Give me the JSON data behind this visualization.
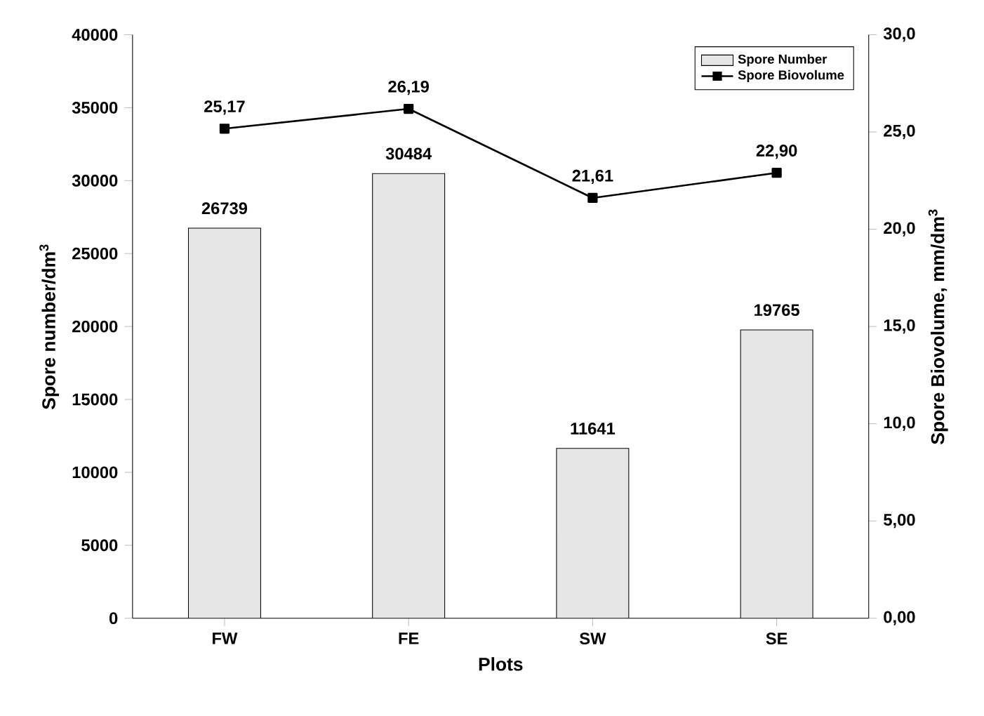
{
  "chart_data": {
    "type": "bar",
    "xlabel": "Plots",
    "ylabel": "Spore number/dm$^{3}$",
    "y2label": "Spore Biovolume, mm/dm$^{3}$",
    "categories": [
      "FW",
      "FE",
      "SW",
      "SE"
    ],
    "series": [
      {
        "name": "Spore Number",
        "color": "#e6e6e6",
        "values": [
          26739,
          30484,
          11641,
          19765
        ]
      },
      {
        "name": "Spore Biovolume",
        "type": "line",
        "axis": "y2",
        "color": "#000000",
        "marker": "square",
        "values": [
          25.17,
          26.19,
          21.61,
          22.9
        ],
        "value_labels": [
          "25,17",
          "26,19",
          "21,61",
          "22,90"
        ]
      }
    ],
    "ylim": [
      0,
      40000
    ],
    "yticks": [
      0,
      5000,
      10000,
      15000,
      20000,
      25000,
      30000,
      35000,
      40000
    ],
    "y2lim": [
      0,
      30
    ],
    "y2ticks": [
      {
        "value": 0,
        "label": "0,00"
      },
      {
        "value": 5,
        "label": "5,00"
      },
      {
        "value": 10,
        "label": "10,0"
      },
      {
        "value": 15,
        "label": "15,0"
      },
      {
        "value": 20,
        "label": "20,0"
      },
      {
        "value": 25,
        "label": "25,0"
      },
      {
        "value": 30,
        "label": "30,0"
      }
    ],
    "data_labels": true,
    "legend": "top right"
  }
}
